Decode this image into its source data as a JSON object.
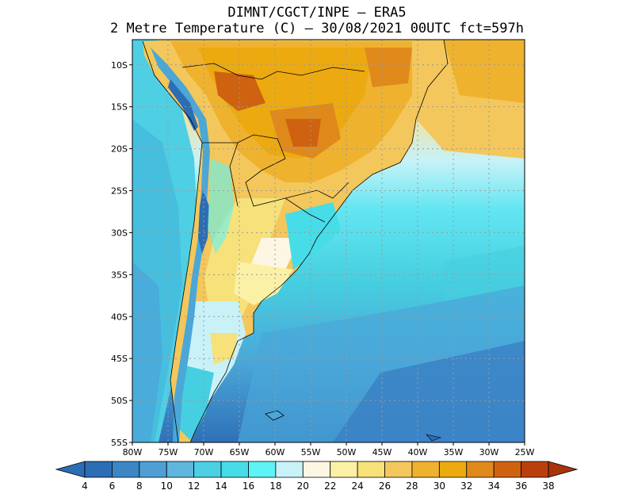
{
  "title_line1": "DIMNT/CGCT/INPE —  ERA5",
  "title_line2": "2 Metre Temperature (C) —  30/08/2021 00UTC fct=597h",
  "map": {
    "lon_ticks": [
      "80W",
      "75W",
      "70W",
      "65W",
      "60W",
      "55W",
      "50W",
      "45W",
      "40W",
      "35W",
      "30W",
      "25W"
    ],
    "lat_ticks": [
      "10S",
      "15S",
      "20S",
      "25S",
      "30S",
      "35S",
      "40S",
      "45S",
      "50S",
      "55S"
    ],
    "lon_range": [
      -80,
      -25
    ],
    "lat_range": [
      -55,
      -7
    ]
  },
  "colorbar": {
    "labels": [
      "4",
      "6",
      "8",
      "10",
      "12",
      "14",
      "16",
      "18",
      "20",
      "22",
      "24",
      "26",
      "28",
      "30",
      "32",
      "34",
      "36",
      "38"
    ],
    "colors": [
      "#2c6db3",
      "#3c86c6",
      "#4f9fd4",
      "#5eb6dc",
      "#4dcfe3",
      "#46dde8",
      "#5ef3f6",
      "#c8f2f8",
      "#fdf6e3",
      "#fbf1a6",
      "#f6e17a",
      "#f3c75b",
      "#efb22f",
      "#ecaa10",
      "#e0891b",
      "#cf6211",
      "#b9400d"
    ]
  }
}
